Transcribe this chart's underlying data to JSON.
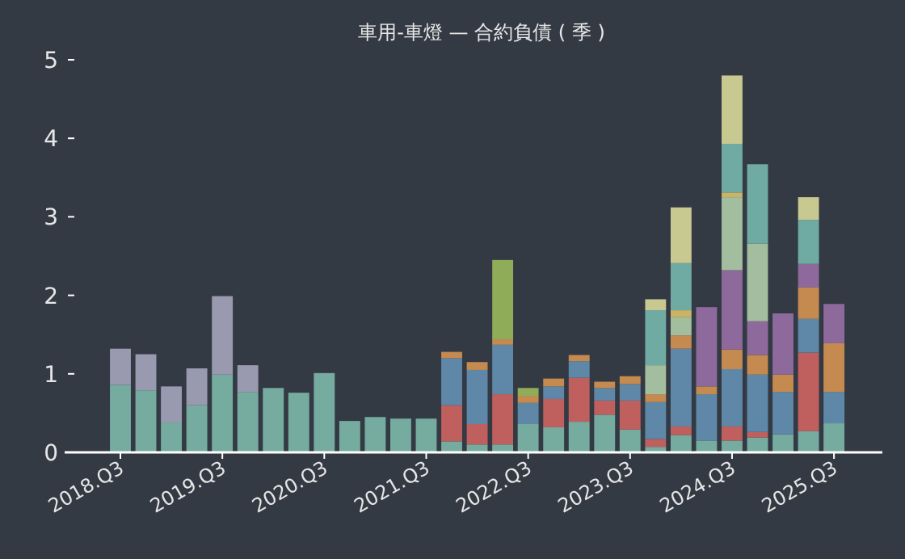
{
  "chart_data": {
    "type": "bar",
    "title": "車用-車燈 — 合約負債 ( 季 )",
    "stacked": true,
    "categories": [
      "2018.Q3",
      null,
      null,
      null,
      "2019.Q3",
      null,
      null,
      null,
      "2020.Q3",
      null,
      null,
      null,
      "2021.Q3",
      null,
      null,
      null,
      "2022.Q3",
      null,
      null,
      null,
      "2023.Q3",
      null,
      null,
      null,
      "2024.Q3",
      null,
      null,
      null,
      "2025.Q3"
    ],
    "ylim": [
      0,
      5
    ],
    "yticks": [
      0,
      1,
      2,
      3,
      4,
      5
    ],
    "series": [
      {
        "color": "#76aba0",
        "values": [
          0.86,
          0.79,
          0.38,
          0.6,
          0.99,
          0.77,
          0.82,
          0.76,
          1.01,
          0.4,
          0.45,
          0.43,
          0.43,
          0.14,
          0.1,
          0.1,
          0.36,
          0.32,
          0.39,
          0.48,
          0.29,
          0.07,
          0.22,
          0.15,
          0.15,
          0.19,
          0.23,
          0.27,
          0.37
        ]
      },
      {
        "color": "#9999b0",
        "values": [
          0.46,
          0.46,
          0.46,
          0.47,
          1.0,
          0.34,
          null,
          null,
          null,
          null,
          null,
          null,
          null,
          null,
          null,
          null,
          null,
          null,
          null,
          null,
          null,
          null,
          null,
          null,
          null,
          null,
          null,
          null,
          null
        ]
      },
      {
        "color": "#c0605e",
        "values": [
          null,
          null,
          null,
          null,
          null,
          null,
          null,
          null,
          null,
          null,
          null,
          null,
          null,
          0.46,
          0.26,
          0.64,
          null,
          0.36,
          0.56,
          0.18,
          0.37,
          0.1,
          0.11,
          null,
          0.18,
          0.07,
          null,
          1.0,
          null
        ]
      },
      {
        "color": "#5f88a8",
        "values": [
          null,
          null,
          null,
          null,
          null,
          null,
          null,
          null,
          null,
          null,
          null,
          null,
          null,
          0.6,
          0.69,
          0.63,
          0.27,
          0.16,
          0.21,
          0.16,
          0.21,
          0.47,
          0.99,
          0.59,
          0.73,
          0.73,
          0.54,
          0.43,
          0.4
        ]
      },
      {
        "color": "#c48a50",
        "values": [
          null,
          null,
          null,
          null,
          null,
          null,
          null,
          null,
          null,
          null,
          null,
          null,
          null,
          0.08,
          0.1,
          0.07,
          0.09,
          0.1,
          0.08,
          0.08,
          0.1,
          0.1,
          0.17,
          0.1,
          0.25,
          0.25,
          0.22,
          0.4,
          0.62
        ]
      },
      {
        "color": "#8fad58",
        "values": [
          null,
          null,
          null,
          null,
          null,
          null,
          null,
          null,
          null,
          null,
          null,
          null,
          null,
          null,
          null,
          1.01,
          0.1,
          null,
          null,
          null,
          null,
          null,
          null,
          null,
          null,
          null,
          null,
          null,
          null
        ]
      },
      {
        "color": "#8e6a9c",
        "values": [
          null,
          null,
          null,
          null,
          null,
          null,
          null,
          null,
          null,
          null,
          null,
          null,
          null,
          null,
          null,
          null,
          null,
          null,
          null,
          null,
          null,
          null,
          null,
          1.01,
          1.01,
          0.43,
          0.78,
          0.3,
          0.5
        ]
      },
      {
        "color": "#a3bd9f",
        "values": [
          null,
          null,
          null,
          null,
          null,
          null,
          null,
          null,
          null,
          null,
          null,
          null,
          null,
          null,
          null,
          null,
          null,
          null,
          null,
          null,
          null,
          0.37,
          0.23,
          null,
          0.93,
          0.99,
          null,
          null,
          null
        ]
      },
      {
        "color": "#c9b466",
        "values": [
          null,
          null,
          null,
          null,
          null,
          null,
          null,
          null,
          null,
          null,
          null,
          null,
          null,
          null,
          null,
          null,
          null,
          null,
          null,
          null,
          null,
          null,
          0.09,
          null,
          0.06,
          null,
          null,
          null,
          null
        ]
      },
      {
        "color": "#6faaa3",
        "values": [
          null,
          null,
          null,
          null,
          null,
          null,
          null,
          null,
          null,
          null,
          null,
          null,
          null,
          null,
          null,
          null,
          null,
          null,
          null,
          null,
          null,
          0.7,
          0.6,
          null,
          0.62,
          1.01,
          null,
          0.56,
          null
        ]
      },
      {
        "color": "#c8c891",
        "values": [
          null,
          null,
          null,
          null,
          null,
          null,
          null,
          null,
          null,
          null,
          null,
          null,
          null,
          null,
          null,
          null,
          null,
          null,
          null,
          null,
          null,
          0.14,
          0.71,
          null,
          0.87,
          null,
          null,
          0.29,
          null
        ]
      }
    ]
  }
}
